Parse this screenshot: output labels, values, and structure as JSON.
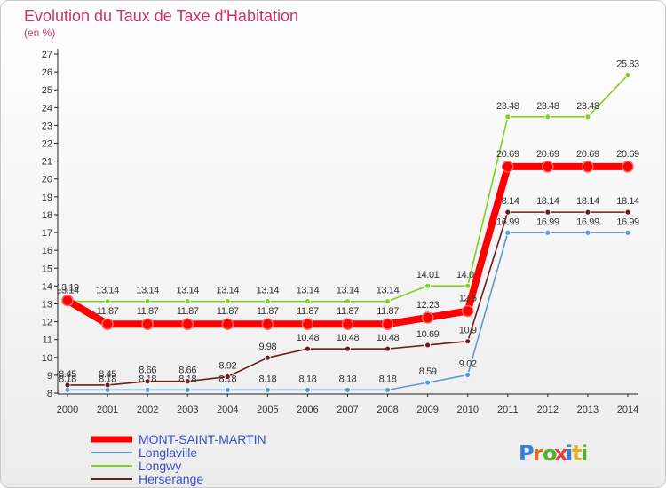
{
  "chart_data": {
    "type": "line",
    "title": "Evolution du Taux de Taxe d'Habitation",
    "subtitle": "(en %)",
    "x": [
      "2000",
      "2001",
      "2002",
      "2003",
      "2004",
      "2005",
      "2006",
      "2007",
      "2008",
      "2009",
      "2010",
      "2011",
      "2012",
      "2013",
      "2014"
    ],
    "ylim": [
      8,
      27
    ],
    "yticks": [
      8,
      9,
      10,
      11,
      12,
      13,
      14,
      15,
      16,
      17,
      18,
      19,
      20,
      21,
      22,
      23,
      24,
      25,
      26,
      27
    ],
    "grid": false,
    "legend_position": "bottom-left",
    "series": [
      {
        "name": "MONT-SAINT-MARTIN",
        "color": "#ff0000",
        "values": [
          13.19,
          11.87,
          11.87,
          11.87,
          11.87,
          11.87,
          11.87,
          11.87,
          11.87,
          12.23,
          12.6,
          20.69,
          20.69,
          20.69,
          20.69
        ],
        "labels": [
          "13.19",
          "11.87",
          "11.87",
          "11.87",
          "11.87",
          "11.87",
          "11.87",
          "11.87",
          "11.87",
          "12.23",
          "12.6",
          "20.69",
          "20.69",
          "20.69",
          "20.69"
        ]
      },
      {
        "name": "Longlaville",
        "color": "#5b9bd5",
        "values": [
          8.18,
          8.18,
          8.18,
          8.18,
          8.18,
          8.18,
          8.18,
          8.18,
          8.18,
          8.59,
          9.02,
          16.99,
          16.99,
          16.99,
          16.99
        ],
        "labels": [
          "8.18",
          "8.18",
          "8.18",
          "8.18",
          "8.18",
          "8.18",
          "8.18",
          "8.18",
          "8.18",
          "8.59",
          "9.02",
          "16.99",
          "16.99",
          "16.99",
          "16.99"
        ]
      },
      {
        "name": "Longwy",
        "color": "#7ed321",
        "values": [
          13.14,
          13.14,
          13.14,
          13.14,
          13.14,
          13.14,
          13.14,
          13.14,
          13.14,
          14.01,
          14.01,
          23.48,
          23.48,
          23.48,
          25.83
        ],
        "labels": [
          "13.14",
          "13.14",
          "13.14",
          "13.14",
          "13.14",
          "13.14",
          "13.14",
          "13.14",
          "13.14",
          "14.01",
          "14.01",
          "23.48",
          "23.48",
          "23.48",
          "25.83"
        ]
      },
      {
        "name": "Herserange",
        "color": "#6b1d1d",
        "values": [
          8.45,
          8.45,
          8.66,
          8.66,
          8.92,
          9.98,
          10.48,
          10.48,
          10.48,
          10.69,
          10.9,
          18.14,
          18.14,
          18.14,
          18.14
        ],
        "labels": [
          "8.45",
          "8.45",
          "8.66",
          "8.66",
          "8.92",
          "9.98",
          "10.48",
          "10.48",
          "10.48",
          "10.69",
          "10.9",
          "18.14",
          "18.14",
          "18.14",
          "18.14"
        ]
      }
    ]
  },
  "logo": {
    "text": "Proxiti"
  }
}
